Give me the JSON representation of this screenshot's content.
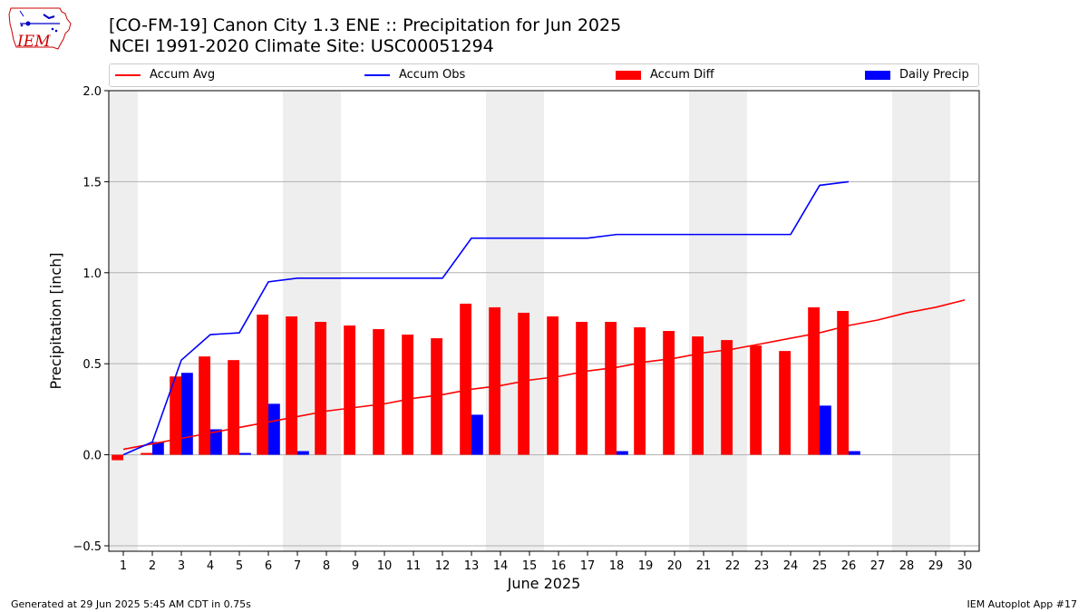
{
  "header": {
    "title_line1": "[CO-FM-19] Canon City 1.3 ENE :: Precipitation for Jun 2025",
    "title_line2": "NCEI 1991-2020 Climate Site: USC00051294"
  },
  "logo": {
    "text": "IEM",
    "color": "#cc0000"
  },
  "footer": {
    "left": "Generated at 29 Jun 2025 5:45 AM CDT in 0.75s",
    "right": "IEM Autoplot App #17"
  },
  "chart_data": {
    "type": "bar",
    "xlabel": "June 2025",
    "ylabel": "Precipitation [inch]",
    "ylim": [
      -0.53,
      2.0
    ],
    "yticks": [
      -0.5,
      0.0,
      0.5,
      1.0,
      1.5,
      2.0
    ],
    "ytick_labels": [
      "−0.5",
      "0.0",
      "0.5",
      "1.0",
      "1.5",
      "2.0"
    ],
    "days": [
      1,
      2,
      3,
      4,
      5,
      6,
      7,
      8,
      9,
      10,
      11,
      12,
      13,
      14,
      15,
      16,
      17,
      18,
      19,
      20,
      21,
      22,
      23,
      24,
      25,
      26,
      27,
      28,
      29,
      30
    ],
    "weekend_days": [
      1,
      7,
      8,
      14,
      15,
      21,
      22,
      28,
      29
    ],
    "grid": "horizontal",
    "legend": {
      "placement": "top",
      "items": [
        {
          "label": "Accum Avg",
          "kind": "line",
          "color": "#ff0000"
        },
        {
          "label": "Accum Obs",
          "kind": "line",
          "color": "#0000ff"
        },
        {
          "label": "Accum Diff",
          "kind": "bar",
          "color": "#ff0000"
        },
        {
          "label": "Daily Precip",
          "kind": "bar",
          "color": "#0000ff"
        }
      ]
    },
    "series": [
      {
        "name": "Accum Avg",
        "type": "line",
        "color": "#ff0000",
        "values": [
          0.03,
          0.06,
          0.09,
          0.12,
          0.15,
          0.18,
          0.21,
          0.24,
          0.26,
          0.28,
          0.31,
          0.33,
          0.36,
          0.38,
          0.41,
          0.43,
          0.46,
          0.48,
          0.51,
          0.53,
          0.56,
          0.58,
          0.61,
          0.64,
          0.67,
          0.71,
          0.74,
          0.78,
          0.81,
          0.85
        ]
      },
      {
        "name": "Accum Obs",
        "type": "line",
        "color": "#0000ff",
        "values": [
          0.0,
          0.07,
          0.52,
          0.66,
          0.67,
          0.95,
          0.97,
          0.97,
          0.97,
          0.97,
          0.97,
          0.97,
          1.19,
          1.19,
          1.19,
          1.19,
          1.19,
          1.21,
          1.21,
          1.21,
          1.21,
          1.21,
          1.21,
          1.21,
          1.48,
          1.5
        ]
      },
      {
        "name": "Accum Diff",
        "type": "bar",
        "color": "#ff0000",
        "values": [
          -0.03,
          0.01,
          0.43,
          0.54,
          0.52,
          0.77,
          0.76,
          0.73,
          0.71,
          0.69,
          0.66,
          0.64,
          0.83,
          0.81,
          0.78,
          0.76,
          0.73,
          0.73,
          0.7,
          0.68,
          0.65,
          0.63,
          0.6,
          0.57,
          0.81,
          0.79
        ]
      },
      {
        "name": "Daily Precip",
        "type": "bar",
        "color": "#0000ff",
        "values": [
          0.0,
          0.07,
          0.45,
          0.14,
          0.01,
          0.28,
          0.02,
          0,
          0,
          0,
          0,
          0,
          0.22,
          0,
          0,
          0,
          0,
          0.02,
          0,
          0,
          0,
          0,
          0,
          0,
          0.27,
          0.02
        ]
      }
    ]
  }
}
